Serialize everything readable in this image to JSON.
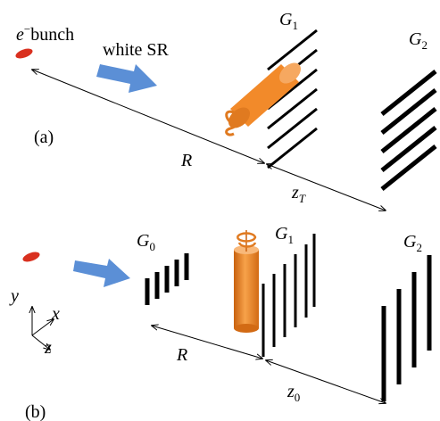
{
  "panel_a": {
    "label": "(a)",
    "bunch": {
      "symbol": "e",
      "superscript": "−",
      "text": "bunch"
    },
    "radiation": "white SR",
    "distance_1": "R",
    "distance_2": {
      "symbol": "z",
      "subscript": "T"
    },
    "grating_1": {
      "symbol": "G",
      "subscript": "1"
    },
    "grating_2": {
      "symbol": "G",
      "subscript": "2"
    }
  },
  "panel_b": {
    "label": "(b)",
    "distance_1": "R",
    "distance_2": {
      "symbol": "z",
      "subscript": "0"
    },
    "grating_0": {
      "symbol": "G",
      "subscript": "0"
    },
    "grating_1": {
      "symbol": "G",
      "subscript": "1"
    },
    "grating_2": {
      "symbol": "G",
      "subscript": "2"
    },
    "axes": {
      "y": "y",
      "x": "x",
      "z": "z"
    }
  }
}
